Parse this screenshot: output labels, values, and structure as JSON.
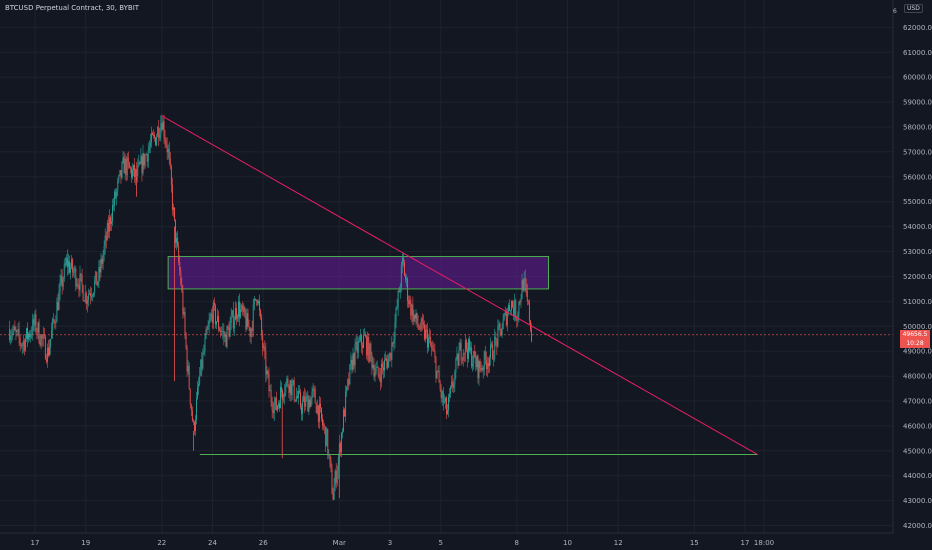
{
  "header": {
    "title": "BTCUSD Perpetual Contract, 30, BYBIT"
  },
  "price_scale": {
    "currency_label": "USD",
    "top_label": "6",
    "ticks": [
      "62000.0",
      "61000.0",
      "60000.0",
      "59000.0",
      "58000.0",
      "57000.0",
      "56000.0",
      "55000.0",
      "54000.0",
      "53000.0",
      "52000.0",
      "51000.0",
      "50000.0",
      "49000.0",
      "48000.0",
      "47000.0",
      "46000.0",
      "45000.0",
      "44000.0",
      "43000.0",
      "42000.0"
    ]
  },
  "time_scale": {
    "ticks": [
      "17",
      "19",
      "22",
      "24",
      "26",
      "Mar",
      "3",
      "5",
      "8",
      "10",
      "12",
      "15",
      "17",
      "18:00"
    ]
  },
  "current_price": {
    "price": "49656.5",
    "countdown": "10:28",
    "color": "#ef5350"
  },
  "colors": {
    "up": "#26a69a",
    "down": "#ef5350",
    "trendline": "#e91e63",
    "zone_fill": "#6a1b9a",
    "zone_border": "#4caf50",
    "support": "#4caf50"
  },
  "chart_data": {
    "type": "candlestick",
    "symbol": "BTCUSD Perpetual Contract",
    "interval": "30",
    "exchange": "BYBIT",
    "ylim": [
      41700,
      63100
    ],
    "x_range": [
      "Feb 16",
      "Mar 18"
    ],
    "price_path": [
      [
        "Feb 16 00:00",
        49900
      ],
      [
        "Feb 16 12:00",
        49300
      ],
      [
        "Feb 17 00:00",
        50100
      ],
      [
        "Feb 17 12:00",
        48900
      ],
      [
        "Feb 18 00:00",
        51500
      ],
      [
        "Feb 18 06:00",
        52600
      ],
      [
        "Feb 18 12:00",
        52200
      ],
      [
        "Feb 18 18:00",
        51800
      ],
      [
        "Feb 19 00:00",
        51200
      ],
      [
        "Feb 19 12:00",
        51900
      ],
      [
        "Feb 20 00:00",
        54500
      ],
      [
        "Feb 20 12:00",
        56500
      ],
      [
        "Feb 21 00:00",
        56000
      ],
      [
        "Feb 21 12:00",
        57200
      ],
      [
        "Feb 21 18:00",
        57600
      ],
      [
        "Feb 22 00:00",
        58350
      ],
      [
        "Feb 22 06:00",
        57000
      ],
      [
        "Feb 22 12:00",
        54000
      ],
      [
        "Feb 22 18:00",
        51800
      ],
      [
        "Feb 23 00:00",
        48500
      ],
      [
        "Feb 23 06:00",
        45800
      ],
      [
        "Feb 23 12:00",
        48000
      ],
      [
        "Feb 23 18:00",
        49500
      ],
      [
        "Feb 24 00:00",
        50600
      ],
      [
        "Feb 24 12:00",
        49500
      ],
      [
        "Feb 25 00:00",
        50800
      ],
      [
        "Feb 25 12:00",
        49800
      ],
      [
        "Feb 25 18:00",
        51500
      ],
      [
        "Feb 26 00:00",
        49000
      ],
      [
        "Feb 26 06:00",
        47300
      ],
      [
        "Feb 26 12:00",
        46700
      ],
      [
        "Feb 26 18:00",
        47500
      ],
      [
        "Feb 27 00:00",
        47800
      ],
      [
        "Feb 27 12:00",
        46800
      ],
      [
        "Feb 28 00:00",
        47200
      ],
      [
        "Feb 28 12:00",
        45500
      ],
      [
        "Feb 28 18:00",
        43200
      ],
      [
        "Mar 1 00:00",
        45000
      ],
      [
        "Mar 1 06:00",
        47000
      ],
      [
        "Mar 1 12:00",
        48600
      ],
      [
        "Mar 1 18:00",
        49200
      ],
      [
        "Mar 2 00:00",
        49500
      ],
      [
        "Mar 2 12:00",
        48000
      ],
      [
        "Mar 3 00:00",
        48800
      ],
      [
        "Mar 3 06:00",
        50500
      ],
      [
        "Mar 3 12:00",
        52600
      ],
      [
        "Mar 3 18:00",
        51000
      ],
      [
        "Mar 4 00:00",
        50200
      ],
      [
        "Mar 4 12:00",
        49500
      ],
      [
        "Mar 4 18:00",
        48700
      ],
      [
        "Mar 5 00:00",
        47300
      ],
      [
        "Mar 5 06:00",
        46500
      ],
      [
        "Mar 5 12:00",
        47800
      ],
      [
        "Mar 5 18:00",
        49000
      ],
      [
        "Mar 6 00:00",
        49200
      ],
      [
        "Mar 6 12:00",
        48300
      ],
      [
        "Mar 7 00:00",
        48900
      ],
      [
        "Mar 7 12:00",
        50200
      ],
      [
        "Mar 7 18:00",
        51000
      ],
      [
        "Mar 8 00:00",
        50500
      ],
      [
        "Mar 8 06:00",
        51800
      ],
      [
        "Mar 8 12:00",
        50400
      ],
      [
        "Mar 8 14:00",
        49656
      ]
    ],
    "wicks": [
      {
        "time": "Feb 21 00:00",
        "low": 55200
      },
      {
        "time": "Feb 22 12:00",
        "low": 47800
      },
      {
        "time": "Feb 23 06:00",
        "low": 45000
      },
      {
        "time": "Feb 26 18:00",
        "low": 44700
      },
      {
        "time": "Mar 1 00:00",
        "low": 43100
      }
    ],
    "drawings": {
      "descending_trendline": {
        "from": {
          "time": "Feb 22 00:00",
          "price": 58450
        },
        "to": {
          "time": "Mar 17 12:00",
          "price": 44850
        }
      },
      "supply_zone": {
        "from_time": "Feb 22 06:00",
        "to_time": "Mar 9 06:00",
        "top": 52800,
        "bottom": 51500
      },
      "support_line": {
        "from_time": "Feb 23 12:00",
        "to_time": "Mar 17 12:00",
        "price": 44850
      }
    },
    "current_price_line": 49656.5
  }
}
